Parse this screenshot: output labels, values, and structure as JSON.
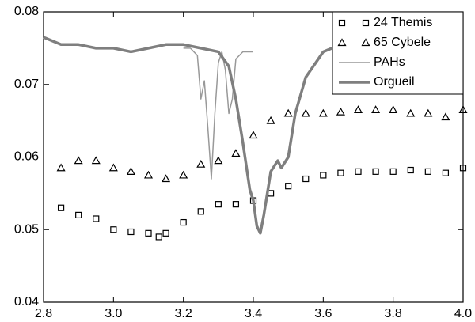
{
  "chart_data": {
    "type": "line",
    "xlim": [
      2.8,
      4.0
    ],
    "xticks": [
      2.8,
      {
        "value": 3.0,
        "label": "3.0"
      },
      3.2,
      3.4,
      3.6,
      3.8,
      {
        "value": 4.0,
        "label": "4.0"
      }
    ],
    "ylim": [
      0.04,
      0.08
    ],
    "yticks": [
      0.04,
      0.05,
      0.06,
      0.07,
      0.08
    ],
    "grid": false,
    "legend": "top-right",
    "series": [
      {
        "name": "24 Themis",
        "color": "#000000",
        "marker": "square",
        "x": [
          2.85,
          2.9,
          2.95,
          3.0,
          3.05,
          3.1,
          3.13,
          3.15,
          3.2,
          3.25,
          3.3,
          3.35,
          3.4,
          3.45,
          3.5,
          3.55,
          3.6,
          3.65,
          3.7,
          3.75,
          3.8,
          3.85,
          3.9,
          3.95,
          4.0
        ],
        "values": [
          0.053,
          0.052,
          0.0515,
          0.05,
          0.0497,
          0.0495,
          0.049,
          0.0495,
          0.051,
          0.0525,
          0.0535,
          0.0535,
          0.054,
          0.055,
          0.056,
          0.057,
          0.0575,
          0.0578,
          0.058,
          0.058,
          0.058,
          0.0582,
          0.058,
          0.0578,
          0.0585
        ]
      },
      {
        "name": "65 Cybele",
        "color": "#000000",
        "marker": "triangle",
        "x": [
          2.85,
          2.9,
          2.95,
          3.0,
          3.05,
          3.1,
          3.15,
          3.2,
          3.25,
          3.3,
          3.35,
          3.4,
          3.45,
          3.5,
          3.55,
          3.6,
          3.65,
          3.7,
          3.75,
          3.8,
          3.85,
          3.9,
          3.95,
          4.0
        ],
        "values": [
          0.0585,
          0.0595,
          0.0595,
          0.0585,
          0.058,
          0.0575,
          0.057,
          0.0575,
          0.059,
          0.0595,
          0.0605,
          0.063,
          0.065,
          0.066,
          0.066,
          0.066,
          0.0662,
          0.0665,
          0.0665,
          0.0665,
          0.066,
          0.066,
          0.0655,
          0.0665
        ]
      },
      {
        "name": "PAHs",
        "color": "#999999",
        "width": 1.5,
        "x": [
          3.2,
          3.22,
          3.24,
          3.25,
          3.26,
          3.27,
          3.28,
          3.29,
          3.3,
          3.31,
          3.32,
          3.33,
          3.34,
          3.35,
          3.37,
          3.4
        ],
        "values": [
          0.075,
          0.075,
          0.074,
          0.068,
          0.0705,
          0.064,
          0.057,
          0.066,
          0.073,
          0.0745,
          0.072,
          0.066,
          0.068,
          0.0735,
          0.0745,
          0.0745
        ]
      },
      {
        "name": "Orgueil",
        "color": "#7f7f7f",
        "width": 3.5,
        "x": [
          2.8,
          2.85,
          2.9,
          2.95,
          3.0,
          3.05,
          3.1,
          3.15,
          3.2,
          3.25,
          3.3,
          3.33,
          3.35,
          3.37,
          3.39,
          3.4,
          3.41,
          3.42,
          3.43,
          3.45,
          3.47,
          3.48,
          3.5,
          3.52,
          3.55,
          3.6,
          3.65,
          3.7
        ],
        "values": [
          0.0765,
          0.0755,
          0.0755,
          0.075,
          0.075,
          0.0745,
          0.075,
          0.0755,
          0.0755,
          0.075,
          0.0745,
          0.0725,
          0.068,
          0.062,
          0.0555,
          0.054,
          0.0505,
          0.0495,
          0.052,
          0.058,
          0.0595,
          0.0585,
          0.06,
          0.066,
          0.071,
          0.0745,
          0.0755,
          0.0755
        ]
      }
    ]
  }
}
